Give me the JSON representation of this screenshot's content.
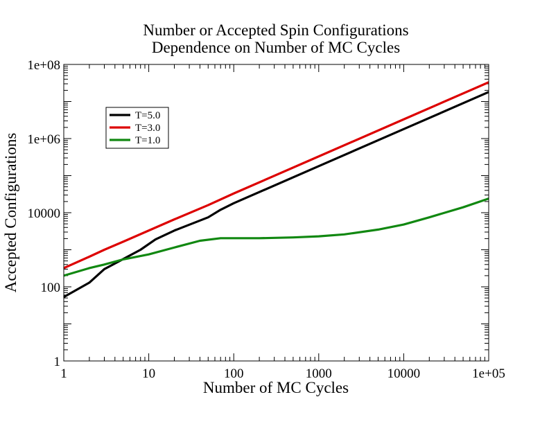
{
  "chart_data": {
    "type": "line",
    "title": "Number or Accepted Spin Configurations",
    "subtitle": "Dependence on Number of MC Cycles",
    "xlabel": "Number of MC Cycles",
    "ylabel": "Accepted Configurations",
    "xscale": "log",
    "yscale": "log",
    "xlim": [
      1,
      100000
    ],
    "ylim": [
      1,
      100000000
    ],
    "x_ticks": [
      {
        "value": 1,
        "label": "1"
      },
      {
        "value": 10,
        "label": "10"
      },
      {
        "value": 100,
        "label": "100"
      },
      {
        "value": 1000,
        "label": "1000"
      },
      {
        "value": 10000,
        "label": "10000"
      },
      {
        "value": 100000,
        "label": "1e+05"
      }
    ],
    "y_ticks": [
      {
        "value": 1,
        "label": "1"
      },
      {
        "value": 100,
        "label": "100"
      },
      {
        "value": 10000,
        "label": "10000"
      },
      {
        "value": 1000000,
        "label": "1e+06"
      },
      {
        "value": 100000000,
        "label": "1e+08"
      }
    ],
    "grid": false,
    "legend_position": "top-left",
    "series": [
      {
        "name": "T=5.0",
        "color": "#000000",
        "points": [
          [
            1,
            53
          ],
          [
            2,
            130
          ],
          [
            3,
            300
          ],
          [
            5,
            560
          ],
          [
            8,
            1000
          ],
          [
            12,
            1900
          ],
          [
            20,
            3300
          ],
          [
            50,
            7500
          ],
          [
            70,
            12000
          ],
          [
            100,
            18000
          ],
          [
            1000,
            180000
          ],
          [
            10000,
            1800000
          ],
          [
            100000,
            18000000
          ]
        ]
      },
      {
        "name": "T=3.0",
        "color": "#dd0000",
        "points": [
          [
            1,
            320
          ],
          [
            2,
            650
          ],
          [
            3,
            1000
          ],
          [
            5,
            1650
          ],
          [
            10,
            3300
          ],
          [
            20,
            6600
          ],
          [
            50,
            16000
          ],
          [
            100,
            33000
          ],
          [
            1000,
            330000
          ],
          [
            10000,
            3300000
          ],
          [
            100000,
            33000000
          ]
        ]
      },
      {
        "name": "T=1.0",
        "color": "#118811",
        "points": [
          [
            1,
            200
          ],
          [
            2,
            320
          ],
          [
            3,
            400
          ],
          [
            5,
            550
          ],
          [
            10,
            750
          ],
          [
            20,
            1150
          ],
          [
            40,
            1750
          ],
          [
            70,
            2050
          ],
          [
            100,
            2050
          ],
          [
            200,
            2050
          ],
          [
            500,
            2150
          ],
          [
            1000,
            2300
          ],
          [
            2000,
            2600
          ],
          [
            5000,
            3500
          ],
          [
            10000,
            4800
          ],
          [
            20000,
            7500
          ],
          [
            50000,
            14000
          ],
          [
            100000,
            24000
          ]
        ]
      }
    ]
  }
}
